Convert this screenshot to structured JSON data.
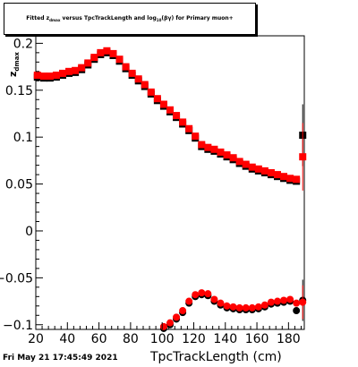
{
  "chart_data": {
    "type": "scatter",
    "title_parts": {
      "pre": "Fitted ",
      "sym": "z",
      "symsub": "dmax",
      "mid": " versus TpcTrackLength and log",
      "logsub": "10",
      "post": "(βγ) for Primary muon+"
    },
    "xlabel": "TpcTrackLength (cm)",
    "ylabel": "z_dmax",
    "xlim": [
      20,
      190
    ],
    "ylim": [
      -0.105,
      0.208
    ],
    "x_ticks": [
      20,
      40,
      60,
      80,
      100,
      120,
      140,
      160,
      180
    ],
    "y_ticks": [
      -0.1,
      -0.05,
      0,
      0.05,
      0.1,
      0.15,
      0.2
    ],
    "y_tick_labels": [
      "−0.1",
      "−0.05",
      "0",
      "0.05",
      "0.1",
      "0.15",
      "0.2"
    ],
    "series": [
      {
        "marker": "square",
        "color": "#000000",
        "x": [
          21,
          25,
          29,
          33,
          37,
          41,
          45,
          49,
          53,
          57,
          61,
          65,
          69,
          73,
          77,
          81,
          85,
          89,
          93,
          97,
          101,
          105,
          109,
          113,
          117,
          121,
          125,
          129,
          133,
          137,
          141,
          145,
          149,
          153,
          157,
          161,
          165,
          169,
          173,
          177,
          181,
          185,
          189
        ],
        "y": [
          0.164,
          0.163,
          0.163,
          0.164,
          0.166,
          0.168,
          0.169,
          0.172,
          0.177,
          0.183,
          0.188,
          0.19,
          0.187,
          0.181,
          0.173,
          0.166,
          0.16,
          0.154,
          0.146,
          0.139,
          0.133,
          0.127,
          0.121,
          0.114,
          0.107,
          0.099,
          0.09,
          0.087,
          0.085,
          0.082,
          0.079,
          0.076,
          0.072,
          0.069,
          0.066,
          0.064,
          0.062,
          0.06,
          0.058,
          0.056,
          0.054,
          0.053,
          0.102
        ],
        "err": [
          0,
          0,
          0,
          0,
          0,
          0,
          0,
          0,
          0,
          0,
          0,
          0,
          0,
          0,
          0,
          0,
          0,
          0,
          0,
          0,
          0,
          0,
          0,
          0,
          0,
          0,
          0,
          0,
          0,
          0,
          0,
          0,
          0,
          0,
          0,
          0,
          0,
          0,
          0,
          0,
          0,
          0,
          0.033
        ]
      },
      {
        "marker": "square",
        "color": "#ff0000",
        "x": [
          21,
          25,
          29,
          33,
          37,
          41,
          45,
          49,
          53,
          57,
          61,
          65,
          69,
          73,
          77,
          81,
          85,
          89,
          93,
          97,
          101,
          105,
          109,
          113,
          117,
          121,
          125,
          129,
          133,
          137,
          141,
          145,
          149,
          153,
          157,
          161,
          165,
          169,
          173,
          177,
          181,
          185,
          189
        ],
        "y": [
          0.166,
          0.165,
          0.165,
          0.166,
          0.168,
          0.17,
          0.171,
          0.174,
          0.179,
          0.185,
          0.19,
          0.192,
          0.189,
          0.183,
          0.175,
          0.168,
          0.162,
          0.156,
          0.148,
          0.141,
          0.135,
          0.129,
          0.123,
          0.116,
          0.109,
          0.101,
          0.092,
          0.089,
          0.087,
          0.084,
          0.081,
          0.078,
          0.074,
          0.071,
          0.068,
          0.066,
          0.064,
          0.062,
          0.06,
          0.058,
          0.056,
          0.055,
          0.079
        ],
        "err": [
          0,
          0,
          0,
          0,
          0,
          0,
          0,
          0,
          0,
          0,
          0,
          0,
          0,
          0,
          0,
          0,
          0,
          0,
          0,
          0,
          0,
          0,
          0,
          0,
          0,
          0,
          0,
          0,
          0,
          0,
          0,
          0,
          0,
          0,
          0,
          0,
          0,
          0,
          0,
          0,
          0,
          0,
          0.036
        ]
      },
      {
        "marker": "circle",
        "color": "#000000",
        "x": [
          101,
          105,
          109,
          113,
          117,
          121,
          125,
          129,
          133,
          137,
          141,
          145,
          149,
          153,
          157,
          161,
          165,
          169,
          173,
          177,
          181,
          185,
          189
        ],
        "y": [
          -0.104,
          -0.1,
          -0.094,
          -0.087,
          -0.077,
          -0.07,
          -0.068,
          -0.069,
          -0.075,
          -0.079,
          -0.082,
          -0.083,
          -0.084,
          -0.084,
          -0.084,
          -0.083,
          -0.081,
          -0.078,
          -0.077,
          -0.076,
          -0.075,
          -0.085,
          -0.074
        ],
        "err": [
          0,
          0,
          0,
          0,
          0,
          0,
          0,
          0,
          0,
          0,
          0,
          0,
          0,
          0,
          0,
          0,
          0,
          0,
          0,
          0,
          0,
          0,
          0.022
        ]
      },
      {
        "marker": "circle",
        "color": "#ff0000",
        "x": [
          101,
          105,
          109,
          113,
          117,
          121,
          125,
          129,
          133,
          137,
          141,
          145,
          149,
          153,
          157,
          161,
          165,
          169,
          173,
          177,
          181,
          185,
          189
        ],
        "y": [
          -0.102,
          -0.098,
          -0.092,
          -0.085,
          -0.075,
          -0.068,
          -0.066,
          -0.067,
          -0.073,
          -0.077,
          -0.08,
          -0.081,
          -0.082,
          -0.082,
          -0.082,
          -0.081,
          -0.079,
          -0.076,
          -0.075,
          -0.074,
          -0.073,
          -0.077,
          -0.076
        ],
        "err": [
          0,
          0,
          0,
          0,
          0,
          0,
          0,
          0,
          0,
          0,
          0,
          0,
          0,
          0,
          0,
          0,
          0,
          0,
          0,
          0,
          0,
          0,
          0.018
        ]
      }
    ]
  },
  "datestamp": "Fri May 21 17:45:49 2021"
}
